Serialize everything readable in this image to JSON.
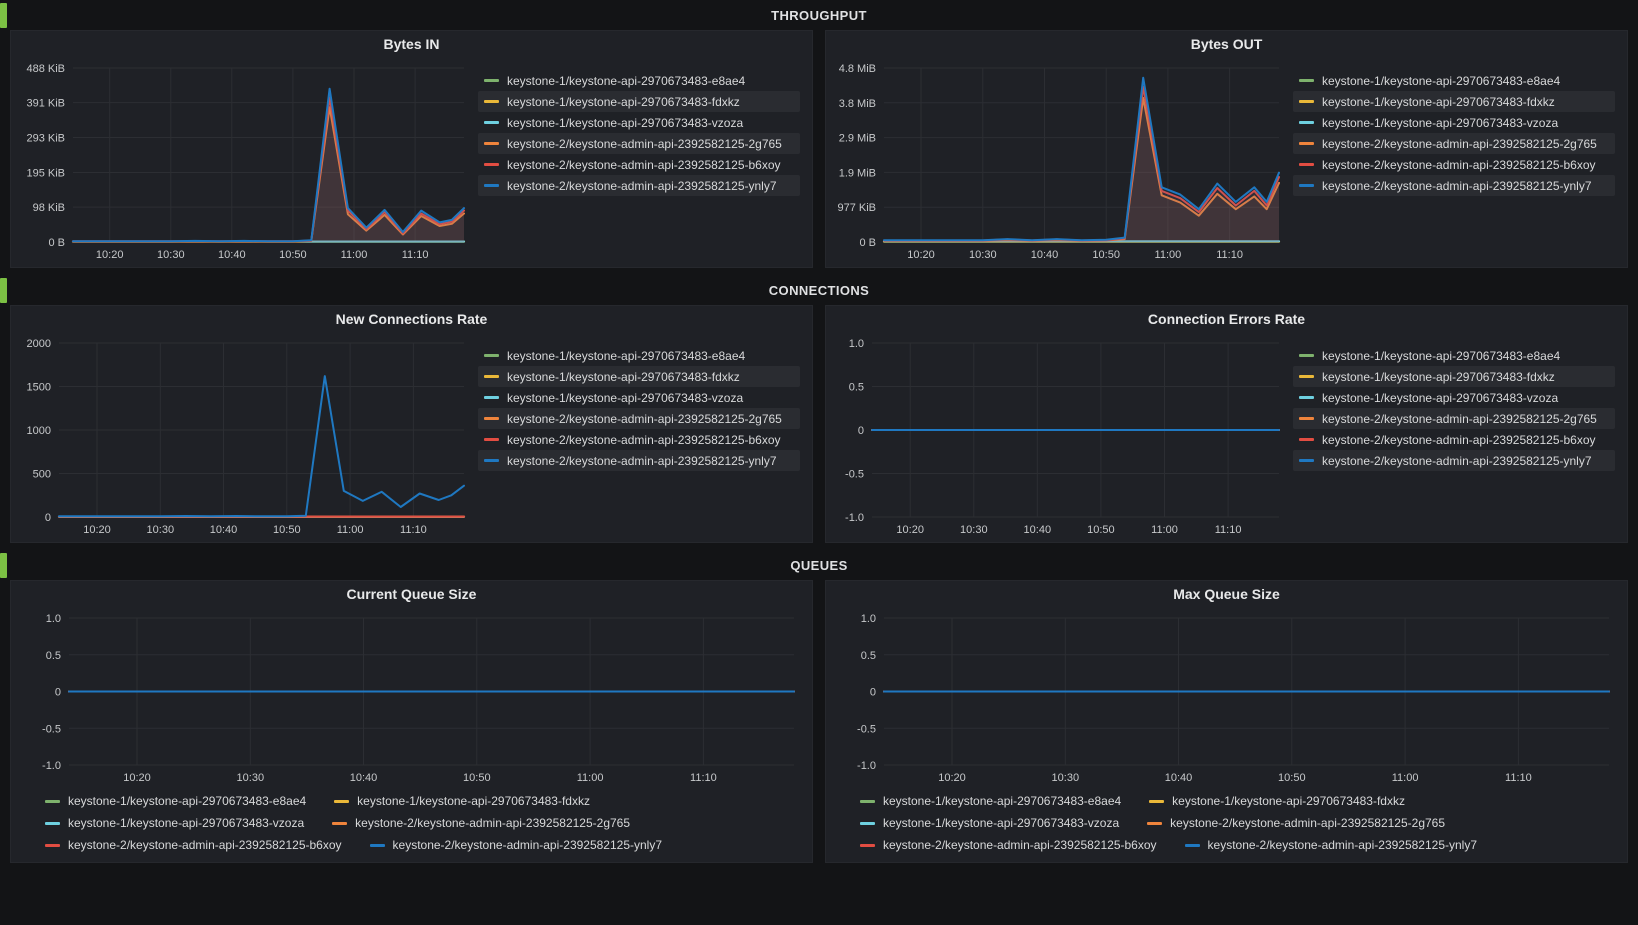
{
  "page": {
    "background": "#131416",
    "panel_background": "#1f2126",
    "row_indicator_color": "#7CC144"
  },
  "rows": [
    {
      "title": "THROUGHPUT"
    },
    {
      "title": "CONNECTIONS"
    },
    {
      "title": "QUEUES"
    }
  ],
  "series_palette": [
    "#7EB26D",
    "#EAB839",
    "#6ED0E0",
    "#EF843C",
    "#E24D42",
    "#1F78C1"
  ],
  "chart_data": [
    {
      "type": "line",
      "title": "Bytes IN",
      "unit": "KiB",
      "fill": true,
      "margin_left": 60,
      "xlim": [
        14,
        78
      ],
      "ylim": [
        0,
        488
      ],
      "xticks": [
        {
          "v": 20,
          "label": "10:20"
        },
        {
          "v": 30,
          "label": "10:30"
        },
        {
          "v": 40,
          "label": "10:40"
        },
        {
          "v": 50,
          "label": "10:50"
        },
        {
          "v": 60,
          "label": "11:00"
        },
        {
          "v": 70,
          "label": "11:10"
        }
      ],
      "yticks": [
        {
          "v": 0,
          "label": "0 B"
        },
        {
          "v": 98,
          "label": "98 KiB"
        },
        {
          "v": 195,
          "label": "195 KiB"
        },
        {
          "v": 293,
          "label": "293 KiB"
        },
        {
          "v": 391,
          "label": "391 KiB"
        },
        {
          "v": 488,
          "label": "488 KiB"
        }
      ],
      "x": [
        14,
        18,
        22,
        26,
        30,
        34,
        38,
        42,
        46,
        50,
        53,
        56,
        59,
        62,
        65,
        68,
        71,
        74,
        76,
        78
      ],
      "series": [
        {
          "name": "keystone-1/keystone-api-2970673483-e8ae4",
          "color": "#7EB26D",
          "value": 1
        },
        {
          "name": "keystone-1/keystone-api-2970673483-fdxkz",
          "color": "#EAB839",
          "value": 1
        },
        {
          "name": "keystone-1/keystone-api-2970673483-vzoza",
          "color": "#6ED0E0",
          "value": 1.5
        },
        {
          "name": "keystone-2/keystone-admin-api-2392582125-2g765",
          "color": "#EF843C",
          "values": [
            1,
            1,
            1,
            1,
            1,
            2,
            1,
            2,
            1,
            1,
            3,
            378,
            78,
            32,
            76,
            21,
            73,
            45,
            51,
            80
          ]
        },
        {
          "name": "keystone-2/keystone-admin-api-2392582125-b6xoy",
          "color": "#E24D42",
          "values": [
            2,
            2,
            2,
            2,
            2,
            2,
            2,
            2,
            2,
            2,
            4,
            405,
            88,
            36,
            84,
            24,
            80,
            50,
            57,
            88
          ]
        },
        {
          "name": "keystone-2/keystone-admin-api-2392582125-ynly7",
          "color": "#1F78C1",
          "values": [
            2,
            2,
            2,
            2,
            2,
            3,
            2,
            3,
            2,
            2,
            5,
            430,
            95,
            40,
            90,
            28,
            88,
            55,
            62,
            95
          ]
        }
      ]
    },
    {
      "type": "line",
      "title": "Bytes OUT",
      "unit": "MiB",
      "fill": true,
      "margin_left": 56,
      "xlim": [
        14,
        78
      ],
      "ylim": [
        0,
        4.768
      ],
      "xticks": [
        {
          "v": 20,
          "label": "10:20"
        },
        {
          "v": 30,
          "label": "10:30"
        },
        {
          "v": 40,
          "label": "10:40"
        },
        {
          "v": 50,
          "label": "10:50"
        },
        {
          "v": 60,
          "label": "11:00"
        },
        {
          "v": 70,
          "label": "11:10"
        }
      ],
      "yticks": [
        {
          "v": 0,
          "label": "0 B"
        },
        {
          "v": 0.954,
          "label": "977 KiB"
        },
        {
          "v": 1.907,
          "label": "1.9 MiB"
        },
        {
          "v": 2.861,
          "label": "2.9 MiB"
        },
        {
          "v": 3.815,
          "label": "3.8 MiB"
        },
        {
          "v": 4.768,
          "label": "4.8 MiB"
        }
      ],
      "x": [
        14,
        18,
        22,
        26,
        30,
        34,
        38,
        42,
        46,
        50,
        53,
        56,
        59,
        62,
        65,
        68,
        71,
        74,
        76,
        78
      ],
      "series": [
        {
          "name": "keystone-1/keystone-api-2970673483-e8ae4",
          "color": "#7EB26D",
          "value": 0.01
        },
        {
          "name": "keystone-1/keystone-api-2970673483-fdxkz",
          "color": "#EAB839",
          "value": 0.01
        },
        {
          "name": "keystone-1/keystone-api-2970673483-vzoza",
          "color": "#6ED0E0",
          "value": 0.02
        },
        {
          "name": "keystone-2/keystone-admin-api-2392582125-2g765",
          "color": "#EF843C",
          "values": [
            0.03,
            0.03,
            0.03,
            0.03,
            0.03,
            0.05,
            0.03,
            0.05,
            0.03,
            0.04,
            0.08,
            3.95,
            1.28,
            1.08,
            0.72,
            1.32,
            0.9,
            1.25,
            0.9,
            1.62
          ]
        },
        {
          "name": "keystone-2/keystone-admin-api-2392582125-b6xoy",
          "color": "#E24D42",
          "values": [
            0.04,
            0.04,
            0.04,
            0.04,
            0.04,
            0.07,
            0.04,
            0.07,
            0.04,
            0.05,
            0.1,
            4.25,
            1.4,
            1.2,
            0.82,
            1.48,
            1.0,
            1.4,
            1.0,
            1.78
          ]
        },
        {
          "name": "keystone-2/keystone-admin-api-2392582125-ynly7",
          "color": "#1F78C1",
          "values": [
            0.05,
            0.05,
            0.05,
            0.05,
            0.05,
            0.08,
            0.05,
            0.08,
            0.05,
            0.06,
            0.12,
            4.5,
            1.5,
            1.3,
            0.9,
            1.6,
            1.1,
            1.5,
            1.1,
            1.9
          ]
        }
      ]
    },
    {
      "type": "line",
      "title": "New Connections Rate",
      "unit": "",
      "fill": false,
      "margin_left": 46,
      "xlim": [
        14,
        78
      ],
      "ylim": [
        0,
        2000
      ],
      "xticks": [
        {
          "v": 20,
          "label": "10:20"
        },
        {
          "v": 30,
          "label": "10:30"
        },
        {
          "v": 40,
          "label": "10:40"
        },
        {
          "v": 50,
          "label": "10:50"
        },
        {
          "v": 60,
          "label": "11:00"
        },
        {
          "v": 70,
          "label": "11:10"
        }
      ],
      "yticks": [
        {
          "v": 0,
          "label": "0"
        },
        {
          "v": 500,
          "label": "500"
        },
        {
          "v": 1000,
          "label": "1000"
        },
        {
          "v": 1500,
          "label": "1500"
        },
        {
          "v": 2000,
          "label": "2000"
        }
      ],
      "x": [
        14,
        18,
        22,
        26,
        30,
        34,
        38,
        42,
        46,
        50,
        53,
        56,
        59,
        62,
        65,
        68,
        71,
        74,
        76,
        78
      ],
      "series": [
        {
          "name": "keystone-1/keystone-api-2970673483-e8ae4",
          "color": "#7EB26D",
          "value": 4
        },
        {
          "name": "keystone-1/keystone-api-2970673483-fdxkz",
          "color": "#EAB839",
          "value": 4
        },
        {
          "name": "keystone-1/keystone-api-2970673483-vzoza",
          "color": "#6ED0E0",
          "value": 2
        },
        {
          "name": "keystone-2/keystone-admin-api-2392582125-2g765",
          "color": "#EF843C",
          "value": 5
        },
        {
          "name": "keystone-2/keystone-admin-api-2392582125-b6xoy",
          "color": "#E24D42",
          "value": 5
        },
        {
          "name": "keystone-2/keystone-admin-api-2392582125-ynly7",
          "color": "#1F78C1",
          "values": [
            8,
            8,
            8,
            8,
            8,
            12,
            8,
            12,
            8,
            8,
            15,
            1620,
            300,
            185,
            290,
            115,
            270,
            195,
            250,
            360
          ]
        }
      ]
    },
    {
      "type": "line",
      "title": "Connection Errors Rate",
      "unit": "",
      "fill": false,
      "margin_left": 44,
      "xlim": [
        14,
        78
      ],
      "ylim": [
        -1,
        1
      ],
      "xticks": [
        {
          "v": 20,
          "label": "10:20"
        },
        {
          "v": 30,
          "label": "10:30"
        },
        {
          "v": 40,
          "label": "10:40"
        },
        {
          "v": 50,
          "label": "10:50"
        },
        {
          "v": 60,
          "label": "11:00"
        },
        {
          "v": 70,
          "label": "11:10"
        }
      ],
      "yticks": [
        {
          "v": -1,
          "label": "-1.0"
        },
        {
          "v": -0.5,
          "label": "-0.5"
        },
        {
          "v": 0,
          "label": "0"
        },
        {
          "v": 0.5,
          "label": "0.5"
        },
        {
          "v": 1,
          "label": "1.0"
        }
      ],
      "x": [
        14,
        78
      ],
      "series": [
        {
          "name": "keystone-1/keystone-api-2970673483-e8ae4",
          "color": "#7EB26D",
          "value": 0
        },
        {
          "name": "keystone-1/keystone-api-2970673483-fdxkz",
          "color": "#EAB839",
          "value": 0
        },
        {
          "name": "keystone-1/keystone-api-2970673483-vzoza",
          "color": "#6ED0E0",
          "value": 0
        },
        {
          "name": "keystone-2/keystone-admin-api-2392582125-2g765",
          "color": "#EF843C",
          "value": 0
        },
        {
          "name": "keystone-2/keystone-admin-api-2392582125-b6xoy",
          "color": "#E24D42",
          "value": 0
        },
        {
          "name": "keystone-2/keystone-admin-api-2392582125-ynly7",
          "color": "#1F78C1",
          "value": 0
        }
      ]
    },
    {
      "type": "line",
      "title": "Current Queue Size",
      "unit": "",
      "fill": false,
      "margin_left": 52,
      "xlim": [
        14,
        78
      ],
      "ylim": [
        -1,
        1
      ],
      "xticks": [
        {
          "v": 20,
          "label": "10:20"
        },
        {
          "v": 30,
          "label": "10:30"
        },
        {
          "v": 40,
          "label": "10:40"
        },
        {
          "v": 50,
          "label": "10:50"
        },
        {
          "v": 60,
          "label": "11:00"
        },
        {
          "v": 70,
          "label": "11:10"
        }
      ],
      "yticks": [
        {
          "v": -1,
          "label": "-1.0"
        },
        {
          "v": -0.5,
          "label": "-0.5"
        },
        {
          "v": 0,
          "label": "0"
        },
        {
          "v": 0.5,
          "label": "0.5"
        },
        {
          "v": 1,
          "label": "1.0"
        }
      ],
      "x": [
        14,
        78
      ],
      "series": [
        {
          "name": "keystone-1/keystone-api-2970673483-e8ae4",
          "color": "#7EB26D",
          "value": 0
        },
        {
          "name": "keystone-1/keystone-api-2970673483-fdxkz",
          "color": "#EAB839",
          "value": 0
        },
        {
          "name": "keystone-1/keystone-api-2970673483-vzoza",
          "color": "#6ED0E0",
          "value": 0
        },
        {
          "name": "keystone-2/keystone-admin-api-2392582125-2g765",
          "color": "#EF843C",
          "value": 0
        },
        {
          "name": "keystone-2/keystone-admin-api-2392582125-b6xoy",
          "color": "#E24D42",
          "value": 0
        },
        {
          "name": "keystone-2/keystone-admin-api-2392582125-ynly7",
          "color": "#1F78C1",
          "value": 0
        }
      ]
    },
    {
      "type": "line",
      "title": "Max Queue Size",
      "unit": "",
      "fill": false,
      "margin_left": 52,
      "xlim": [
        14,
        78
      ],
      "ylim": [
        -1,
        1
      ],
      "xticks": [
        {
          "v": 20,
          "label": "10:20"
        },
        {
          "v": 30,
          "label": "10:30"
        },
        {
          "v": 40,
          "label": "10:40"
        },
        {
          "v": 50,
          "label": "10:50"
        },
        {
          "v": 60,
          "label": "11:00"
        },
        {
          "v": 70,
          "label": "11:10"
        }
      ],
      "yticks": [
        {
          "v": -1,
          "label": "-1.0"
        },
        {
          "v": -0.5,
          "label": "-0.5"
        },
        {
          "v": 0,
          "label": "0"
        },
        {
          "v": 0.5,
          "label": "0.5"
        },
        {
          "v": 1,
          "label": "1.0"
        }
      ],
      "x": [
        14,
        78
      ],
      "series": [
        {
          "name": "keystone-1/keystone-api-2970673483-e8ae4",
          "color": "#7EB26D",
          "value": 0
        },
        {
          "name": "keystone-1/keystone-api-2970673483-fdxkz",
          "color": "#EAB839",
          "value": 0
        },
        {
          "name": "keystone-1/keystone-api-2970673483-vzoza",
          "color": "#6ED0E0",
          "value": 0
        },
        {
          "name": "keystone-2/keystone-admin-api-2392582125-2g765",
          "color": "#EF843C",
          "value": 0
        },
        {
          "name": "keystone-2/keystone-admin-api-2392582125-b6xoy",
          "color": "#E24D42",
          "value": 0
        },
        {
          "name": "keystone-2/keystone-admin-api-2392582125-ynly7",
          "color": "#1F78C1",
          "value": 0
        }
      ]
    }
  ]
}
